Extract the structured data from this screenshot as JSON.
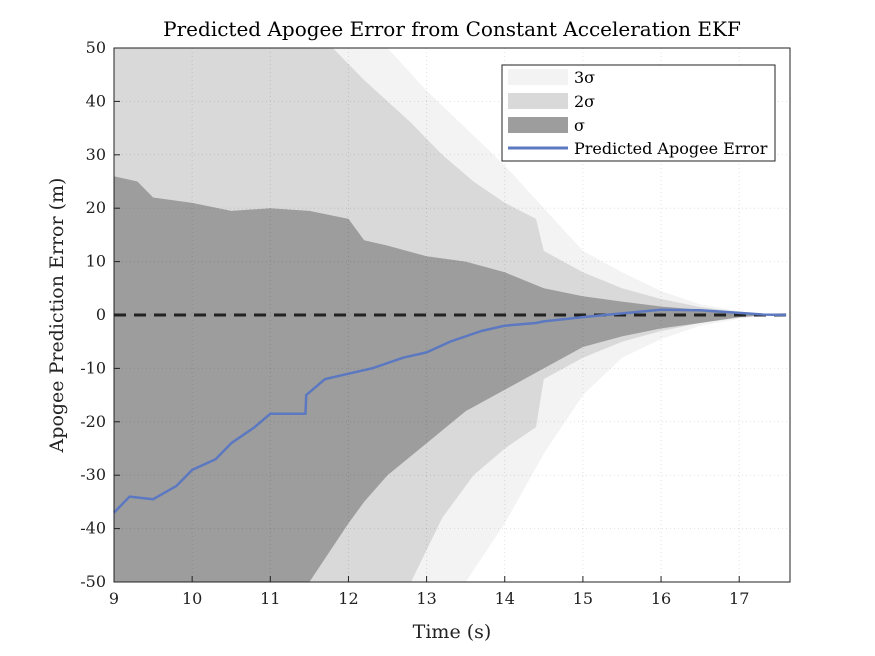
{
  "chart_data": {
    "type": "area",
    "title": "Predicted Apogee Error from Constant Acceleration EKF",
    "xlabel": "Time (s)",
    "ylabel": "Apogee Prediction Error (m)",
    "xlim": [
      9,
      17.65
    ],
    "ylim": [
      -50,
      50
    ],
    "xticks": [
      9,
      10,
      11,
      12,
      13,
      14,
      15,
      16,
      17
    ],
    "yticks": [
      -50,
      -40,
      -30,
      -20,
      -10,
      0,
      10,
      20,
      30,
      40,
      50
    ],
    "grid": true,
    "legend_position": "top-right",
    "reference_line": {
      "y": 0,
      "style": "dashed",
      "color": "#222222"
    },
    "colors": {
      "band3": "#f3f3f3",
      "band2": "#d9d9d9",
      "band1": "#9d9d9d",
      "line": "#5b78c0"
    },
    "series": [
      {
        "name": "3σ",
        "kind": "band",
        "x": [
          9.0,
          12.0,
          12.5,
          13.0,
          13.5,
          14.0,
          14.5,
          15.0,
          15.5,
          16.0,
          16.5,
          17.0,
          17.3,
          17.6
        ],
        "upper": [
          50,
          50,
          50,
          42,
          35,
          28,
          20,
          12,
          8,
          4.5,
          2.0,
          0.7,
          0.2,
          0.0
        ],
        "lower": [
          -50,
          -50,
          -50,
          -50,
          -50,
          -39,
          -26,
          -15,
          -8,
          -4.5,
          -2.0,
          -0.7,
          -0.2,
          0.0
        ]
      },
      {
        "name": "2σ",
        "kind": "band",
        "x": [
          9.0,
          11.8,
          12.2,
          12.8,
          13.2,
          13.6,
          14.0,
          14.4,
          14.5,
          15.0,
          15.5,
          16.0,
          16.5,
          17.0,
          17.3,
          17.6
        ],
        "upper": [
          50,
          50,
          44,
          36,
          30,
          25,
          21,
          18,
          12,
          8,
          5,
          3.0,
          1.5,
          0.5,
          0.1,
          0.0
        ],
        "lower": [
          -50,
          -50,
          -50,
          -50,
          -38,
          -30,
          -25,
          -21,
          -12,
          -8,
          -5,
          -3.0,
          -1.5,
          -0.5,
          -0.1,
          0.0
        ]
      },
      {
        "name": "σ",
        "kind": "band",
        "x": [
          9.0,
          9.3,
          9.5,
          10.0,
          10.5,
          11.0,
          11.5,
          12.0,
          12.2,
          12.5,
          13.0,
          13.5,
          14.0,
          14.5,
          15.0,
          15.5,
          16.0,
          16.5,
          17.0,
          17.3,
          17.6
        ],
        "upper": [
          26,
          25,
          22,
          21,
          19.5,
          20,
          19.5,
          18,
          14,
          13,
          11,
          10,
          8,
          5,
          3.5,
          2.5,
          1.6,
          1.0,
          0.4,
          0.1,
          0.0
        ],
        "lower": [
          -50,
          -50,
          -50,
          -50,
          -50,
          -50,
          -50,
          -39,
          -35,
          -30,
          -24,
          -18,
          -14,
          -10,
          -6,
          -4,
          -2.5,
          -1.5,
          -0.4,
          -0.1,
          0.0
        ]
      },
      {
        "name": "Predicted Apogee Error",
        "kind": "line",
        "x": [
          9.0,
          9.1,
          9.2,
          9.5,
          9.8,
          10.0,
          10.3,
          10.5,
          10.8,
          11.0,
          11.45,
          11.46,
          11.7,
          12.0,
          12.3,
          12.7,
          13.0,
          13.3,
          13.7,
          14.0,
          14.4,
          14.5,
          15.0,
          15.5,
          16.0,
          16.5,
          17.0,
          17.3,
          17.6
        ],
        "y": [
          -37,
          -35.5,
          -34,
          -34.5,
          -32,
          -29,
          -27,
          -24,
          -21,
          -18.5,
          -18.5,
          -15,
          -12,
          -11,
          -10,
          -8,
          -7,
          -5,
          -3,
          -2,
          -1.5,
          -1.2,
          -0.4,
          0.3,
          1.0,
          0.9,
          0.4,
          0.1,
          0.0
        ]
      }
    ]
  }
}
